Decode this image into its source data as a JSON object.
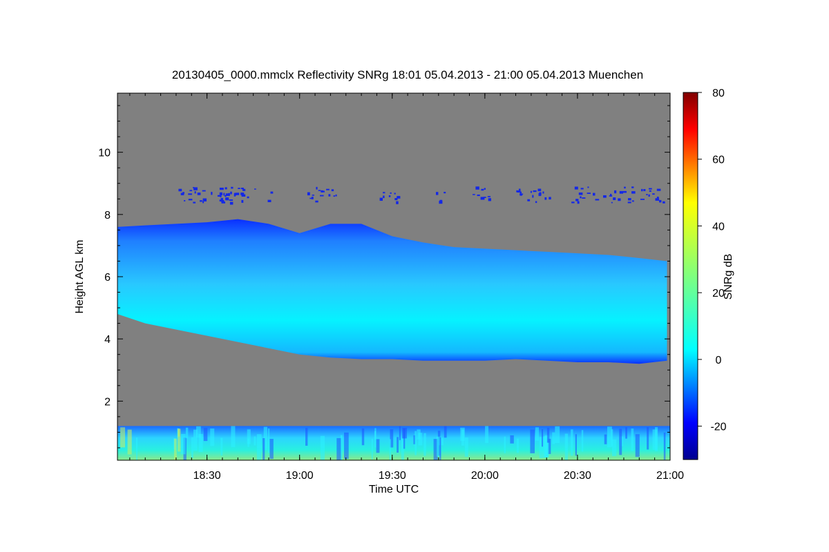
{
  "chart_data": {
    "type": "heatmap",
    "title": "20130405_0000.mmclx Reflectivity SNRg   18:01 05.04.2013 - 21:00 05.04.2013 Muenchen",
    "xlabel": "Time UTC",
    "ylabel": "Height AGL km",
    "colorbar_label": "SNRg dB",
    "xlim": [
      "18:01",
      "21:00"
    ],
    "x_ticks": [
      "18:30",
      "19:00",
      "19:30",
      "20:00",
      "20:30",
      "21:00"
    ],
    "ylim": [
      0.1,
      11.9
    ],
    "y_ticks": [
      2,
      4,
      6,
      8,
      10
    ],
    "colorbar_range": [
      -30,
      80
    ],
    "colorbar_ticks": [
      -20,
      0,
      20,
      40,
      60,
      80
    ],
    "colormap": "jet",
    "background_color": "#808080",
    "cloud_layer": {
      "time_min": [
        1,
        10,
        20,
        30,
        40,
        50,
        60,
        70,
        80,
        90,
        100,
        110,
        120,
        130,
        140,
        150,
        160,
        170,
        179
      ],
      "top_km": [
        7.6,
        7.65,
        7.7,
        7.75,
        7.85,
        7.7,
        7.4,
        7.7,
        7.7,
        7.3,
        7.1,
        6.95,
        6.9,
        6.85,
        6.8,
        6.75,
        6.7,
        6.6,
        6.5
      ],
      "base_km": [
        4.8,
        4.5,
        4.3,
        4.1,
        3.9,
        3.7,
        3.5,
        3.4,
        3.35,
        3.35,
        3.3,
        3.3,
        3.3,
        3.35,
        3.3,
        3.25,
        3.25,
        3.2,
        3.3
      ],
      "core_snr_db": 8
    },
    "upper_echoes": {
      "height_km": [
        8.4,
        8.9
      ],
      "segments_min": [
        [
          20,
          52
        ],
        [
          62,
          72
        ],
        [
          85,
          92
        ],
        [
          104,
          107
        ],
        [
          116,
          122
        ],
        [
          130,
          142
        ],
        [
          148,
          156
        ],
        [
          158,
          168
        ],
        [
          170,
          179
        ]
      ],
      "snr_db": -20
    },
    "boundary_layer": {
      "height_km": [
        0.1,
        1.2
      ],
      "snr_db_range": [
        -15,
        30
      ]
    }
  }
}
